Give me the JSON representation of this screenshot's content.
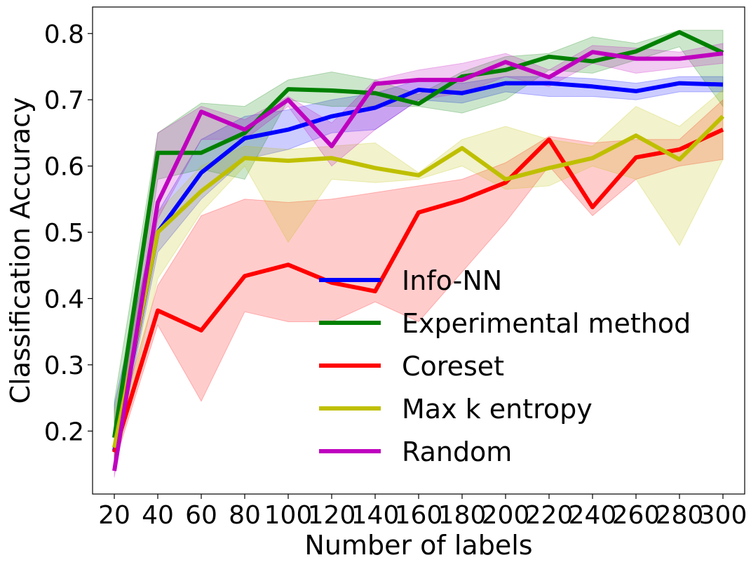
{
  "chart_data": {
    "type": "line",
    "title": "",
    "xlabel": "Number of labels",
    "ylabel": "Classification Accuracy",
    "x": [
      20,
      40,
      60,
      80,
      100,
      120,
      140,
      160,
      180,
      200,
      220,
      240,
      260,
      280,
      300
    ],
    "xlim": [
      10,
      310
    ],
    "ylim": [
      0.105,
      0.84
    ],
    "yticks": [
      0.2,
      0.3,
      0.4,
      0.5,
      0.6,
      0.7,
      0.8
    ],
    "ytick_labels": [
      "0.2",
      "0.3",
      "0.4",
      "0.5",
      "0.6",
      "0.7",
      "0.8"
    ],
    "xtick_labels": [
      "20",
      "40",
      "60",
      "80",
      "100",
      "120",
      "140",
      "160",
      "180",
      "200",
      "220",
      "240",
      "260",
      "280",
      "300"
    ],
    "grid": false,
    "legend_position": "lower-right",
    "series": [
      {
        "name": "Info-NN",
        "color": "#0000ff",
        "values": [
          0.17,
          0.5,
          0.59,
          0.642,
          0.655,
          0.675,
          0.688,
          0.715,
          0.71,
          0.725,
          0.725,
          0.72,
          0.713,
          0.725,
          0.723
        ],
        "lower": [
          0.15,
          0.47,
          0.55,
          0.61,
          0.625,
          0.65,
          0.655,
          0.7,
          0.695,
          0.712,
          0.705,
          0.705,
          0.7,
          0.712,
          0.712
        ],
        "upper": [
          0.24,
          0.53,
          0.64,
          0.675,
          0.685,
          0.7,
          0.71,
          0.73,
          0.725,
          0.735,
          0.735,
          0.732,
          0.725,
          0.735,
          0.735
        ]
      },
      {
        "name": "Experimental method",
        "color": "#008000",
        "values": [
          0.19,
          0.62,
          0.62,
          0.65,
          0.716,
          0.714,
          0.71,
          0.694,
          0.735,
          0.745,
          0.765,
          0.758,
          0.773,
          0.802,
          0.771
        ],
        "lower": [
          0.14,
          0.58,
          0.595,
          0.58,
          0.7,
          0.69,
          0.69,
          0.69,
          0.68,
          0.7,
          0.745,
          0.74,
          0.76,
          0.78,
          0.69
        ],
        "upper": [
          0.245,
          0.65,
          0.695,
          0.69,
          0.73,
          0.742,
          0.73,
          0.708,
          0.742,
          0.765,
          0.77,
          0.795,
          0.785,
          0.805,
          0.805
        ]
      },
      {
        "name": "Coreset",
        "color": "#ff0000",
        "values": [
          0.168,
          0.382,
          0.352,
          0.434,
          0.451,
          0.424,
          0.411,
          0.53,
          0.549,
          0.575,
          0.64,
          0.538,
          0.613,
          0.625,
          0.655
        ],
        "lower": [
          0.15,
          0.36,
          0.245,
          0.38,
          0.365,
          0.365,
          0.395,
          0.365,
          0.44,
          0.515,
          0.6,
          0.525,
          0.58,
          0.6,
          0.61
        ],
        "upper": [
          0.19,
          0.42,
          0.525,
          0.55,
          0.545,
          0.55,
          0.56,
          0.57,
          0.58,
          0.605,
          0.645,
          0.635,
          0.64,
          0.64,
          0.7
        ]
      },
      {
        "name": "Max k entropy",
        "color": "#bfbf00",
        "values": [
          0.175,
          0.5,
          0.562,
          0.612,
          0.608,
          0.612,
          0.597,
          0.586,
          0.627,
          0.58,
          0.597,
          0.612,
          0.646,
          0.61,
          0.675
        ],
        "lower": [
          0.14,
          0.43,
          0.53,
          0.6,
          0.485,
          0.58,
          0.575,
          0.58,
          0.6,
          0.565,
          0.57,
          0.6,
          0.58,
          0.48,
          0.61
        ],
        "upper": [
          0.23,
          0.53,
          0.6,
          0.63,
          0.625,
          0.63,
          0.635,
          0.59,
          0.64,
          0.66,
          0.64,
          0.63,
          0.69,
          0.66,
          0.715
        ]
      },
      {
        "name": "Random",
        "color": "#bf00bf",
        "values": [
          0.14,
          0.545,
          0.682,
          0.655,
          0.7,
          0.63,
          0.724,
          0.73,
          0.73,
          0.757,
          0.734,
          0.772,
          0.762,
          0.762,
          0.77
        ],
        "lower": [
          0.13,
          0.52,
          0.64,
          0.64,
          0.69,
          0.6,
          0.655,
          0.7,
          0.71,
          0.735,
          0.72,
          0.755,
          0.74,
          0.748,
          0.755
        ],
        "upper": [
          0.16,
          0.65,
          0.69,
          0.67,
          0.705,
          0.665,
          0.73,
          0.745,
          0.755,
          0.77,
          0.745,
          0.782,
          0.778,
          0.772,
          0.785
        ]
      }
    ]
  }
}
